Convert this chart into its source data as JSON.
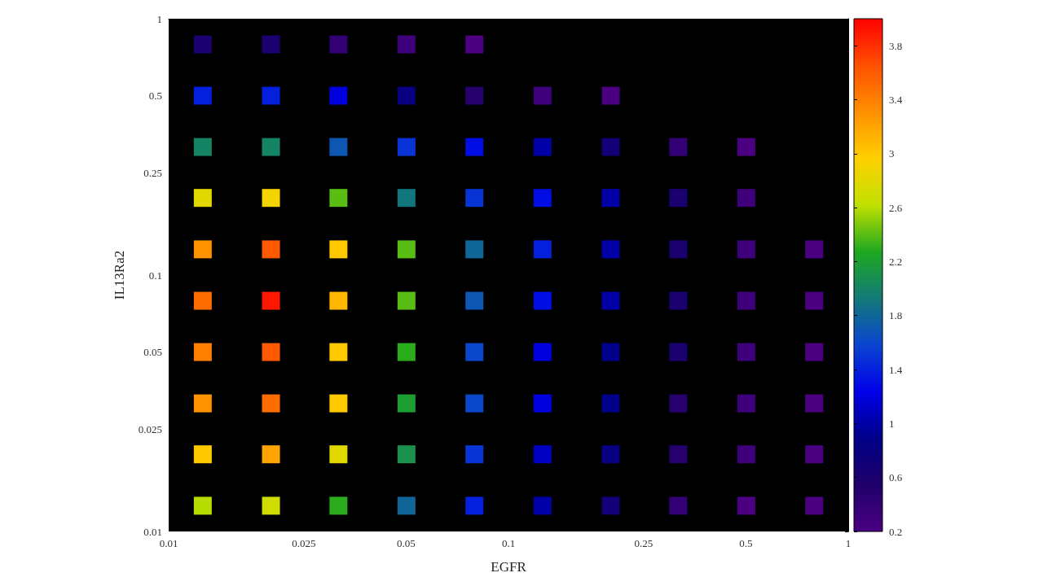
{
  "chart_data": {
    "type": "scatter",
    "xlabel": "EGFR",
    "ylabel": "IL13Ra2",
    "marker": "square",
    "x": [
      0.0126,
      0.02,
      0.0316,
      0.0501,
      0.0794,
      0.0126,
      0.02,
      0.0316,
      0.0501,
      0.0794,
      0.126,
      0.2,
      0.0126,
      0.02,
      0.0316,
      0.0501,
      0.0794,
      0.126,
      0.2,
      0.316,
      0.501,
      0.0126,
      0.02,
      0.0316,
      0.0501,
      0.0794,
      0.126,
      0.2,
      0.316,
      0.501,
      0.0126,
      0.02,
      0.0316,
      0.0501,
      0.0794,
      0.126,
      0.2,
      0.316,
      0.501,
      0.794,
      0.0126,
      0.02,
      0.0316,
      0.0501,
      0.0794,
      0.126,
      0.2,
      0.316,
      0.501,
      0.794,
      0.0126,
      0.02,
      0.0316,
      0.0501,
      0.0794,
      0.126,
      0.2,
      0.316,
      0.501,
      0.794,
      0.0126,
      0.02,
      0.0316,
      0.0501,
      0.0794,
      0.126,
      0.2,
      0.316,
      0.501,
      0.794,
      0.0126,
      0.02,
      0.0316,
      0.0501,
      0.0794,
      0.126,
      0.2,
      0.316,
      0.501,
      0.794,
      0.0126,
      0.02,
      0.0316,
      0.0501,
      0.0794,
      0.126,
      0.2,
      0.316,
      0.501,
      0.794
    ],
    "values": [
      0.794,
      0.794,
      0.794,
      0.794,
      0.794,
      0.501,
      0.501,
      0.501,
      0.501,
      0.501,
      0.501,
      0.501,
      0.316,
      0.316,
      0.316,
      0.316,
      0.316,
      0.316,
      0.316,
      0.316,
      0.316,
      0.2,
      0.2,
      0.2,
      0.2,
      0.2,
      0.2,
      0.2,
      0.2,
      0.2,
      0.126,
      0.126,
      0.126,
      0.126,
      0.126,
      0.126,
      0.126,
      0.126,
      0.126,
      0.126,
      0.0794,
      0.0794,
      0.0794,
      0.0794,
      0.0794,
      0.0794,
      0.0794,
      0.0794,
      0.0794,
      0.0794,
      0.0501,
      0.0501,
      0.0501,
      0.0501,
      0.0501,
      0.0501,
      0.0501,
      0.0501,
      0.0501,
      0.0501,
      0.0316,
      0.0316,
      0.0316,
      0.0316,
      0.0316,
      0.0316,
      0.0316,
      0.0316,
      0.0316,
      0.0316,
      0.02,
      0.02,
      0.02,
      0.02,
      0.02,
      0.02,
      0.02,
      0.02,
      0.02,
      0.02,
      0.0126,
      0.0126,
      0.0126,
      0.0126,
      0.0126,
      0.0126,
      0.0126,
      0.0126,
      0.0126,
      0.0126
    ],
    "cvalues": [
      0.6,
      0.6,
      0.4,
      0.3,
      0.2,
      1.4,
      1.4,
      1.2,
      0.8,
      0.5,
      0.3,
      0.2,
      2.0,
      2.0,
      1.7,
      1.5,
      1.3,
      1.0,
      0.7,
      0.4,
      0.2,
      2.8,
      2.9,
      2.4,
      1.9,
      1.5,
      1.3,
      1.0,
      0.6,
      0.3,
      3.3,
      3.6,
      3.0,
      2.4,
      1.8,
      1.4,
      1.0,
      0.6,
      0.3,
      0.2,
      3.5,
      3.9,
      3.1,
      2.4,
      1.7,
      1.3,
      1.0,
      0.6,
      0.3,
      0.2,
      3.4,
      3.6,
      3.0,
      2.3,
      1.6,
      1.2,
      0.9,
      0.6,
      0.3,
      0.2,
      3.3,
      3.5,
      3.0,
      2.2,
      1.6,
      1.2,
      0.9,
      0.5,
      0.3,
      0.2,
      3.0,
      3.2,
      2.8,
      2.1,
      1.5,
      1.1,
      0.8,
      0.5,
      0.3,
      0.2,
      2.6,
      2.7,
      2.3,
      1.8,
      1.4,
      1.0,
      0.7,
      0.4,
      0.2,
      0.2
    ],
    "log": "xy",
    "xlim": [
      0.01,
      1
    ],
    "ylim": [
      0.01,
      1
    ],
    "xticks": [
      0.01,
      0.025,
      0.05,
      0.1,
      0.25,
      0.5,
      1
    ],
    "yticks": [
      0.01,
      0.025,
      0.05,
      0.1,
      0.25,
      0.5,
      1
    ],
    "clim": [
      0.2,
      4.0
    ],
    "cticks": [
      0.2,
      0.6,
      1.0,
      1.4,
      1.8,
      2.2,
      2.6,
      3.0,
      3.4,
      3.8
    ]
  }
}
